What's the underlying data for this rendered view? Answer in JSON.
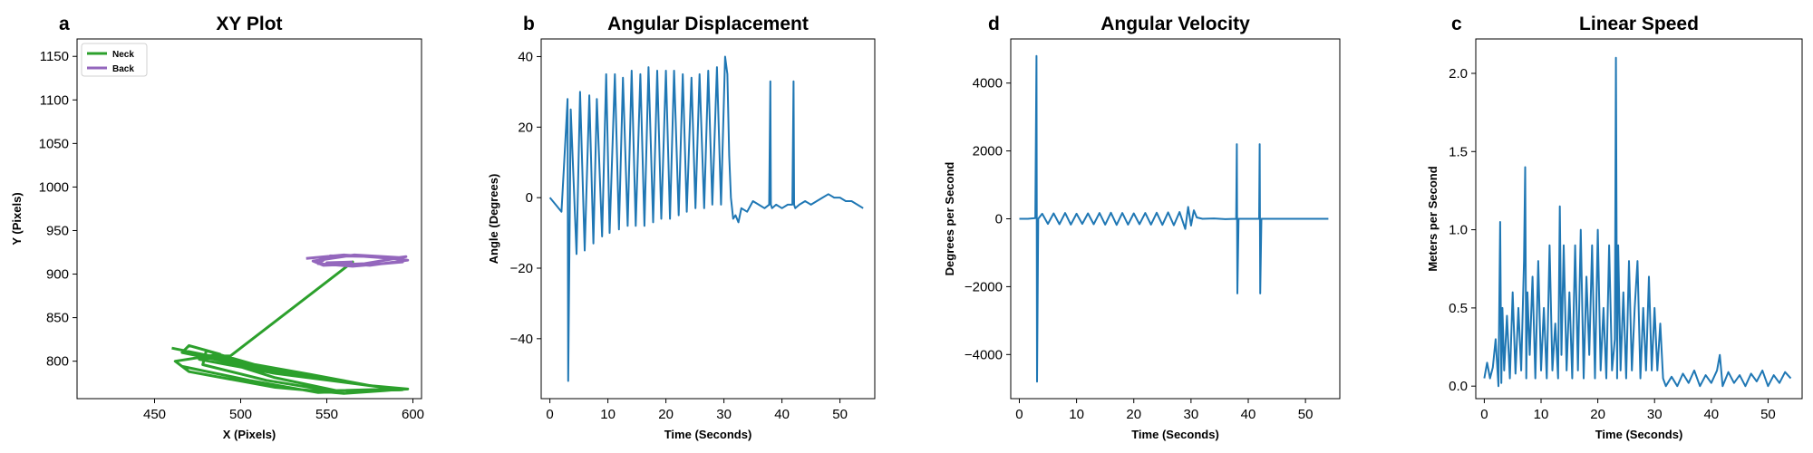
{
  "chart_data": [
    {
      "panel": "a",
      "type": "line",
      "title": "XY Plot",
      "xlabel": "X (Pixels)",
      "ylabel": "Y (Pixels)",
      "xlim": [
        405,
        605
      ],
      "ylim": [
        757,
        1170
      ],
      "xticks": [
        450,
        500,
        550,
        600
      ],
      "yticks": [
        800,
        850,
        900,
        950,
        1000,
        1050,
        1100,
        1150
      ],
      "legend": {
        "placement": "top-left",
        "entries": [
          "Neck",
          "Back"
        ]
      },
      "series": [
        {
          "name": "Neck",
          "color": "#2ca02c",
          "x": [
            460,
            500,
            540,
            575,
            597,
            560,
            520,
            470,
            462,
            488,
            470,
            466,
            500,
            545,
            590,
            552,
            515,
            478,
            480,
            510,
            560,
            594,
            556,
            520,
            480,
            494,
            565,
            494,
            476,
            520,
            575,
            596,
            545,
            505,
            466
          ],
          "y": [
            815,
            799,
            785,
            772,
            768,
            763,
            770,
            788,
            800,
            808,
            818,
            810,
            796,
            780,
            768,
            766,
            778,
            796,
            812,
            795,
            776,
            767,
            766,
            781,
            806,
            806,
            914,
            806,
            802,
            786,
            772,
            768,
            764,
            778,
            794
          ]
        },
        {
          "name": "Back",
          "color": "#9467bd",
          "x": [
            538,
            560,
            588,
            596,
            572,
            548,
            542,
            566,
            592,
            594,
            565,
            545,
            552,
            580,
            597,
            575,
            550,
            565
          ],
          "y": [
            918,
            922,
            918,
            920,
            912,
            910,
            915,
            922,
            919,
            914,
            909,
            912,
            921,
            920,
            916,
            910,
            913,
            914
          ]
        }
      ]
    },
    {
      "panel": "b",
      "type": "line",
      "title": "Angular Displacement",
      "xlabel": "Time (Seconds)",
      "ylabel": "Angle (Degrees)",
      "xlim": [
        -1.5,
        56
      ],
      "ylim": [
        -57,
        45
      ],
      "xticks": [
        0,
        10,
        20,
        30,
        40,
        50
      ],
      "yticks": [
        -40,
        -20,
        0,
        20,
        40
      ],
      "series": [
        {
          "color": "#1f77b4",
          "x": [
            0,
            1,
            2,
            2.8,
            3.05,
            3.15,
            3.6,
            4.6,
            5.2,
            6.0,
            6.8,
            7.5,
            8.1,
            9.0,
            9.7,
            10.3,
            11.2,
            11.9,
            12.6,
            13.4,
            14.1,
            14.8,
            15.6,
            16.3,
            17.0,
            17.8,
            18.5,
            19.2,
            20.0,
            20.7,
            21.4,
            22.2,
            22.9,
            23.6,
            24.4,
            25.1,
            25.8,
            26.6,
            27.3,
            28.0,
            28.8,
            29.5,
            30.2,
            30.6,
            30.9,
            31.2,
            31.6,
            32.0,
            32.5,
            33.0,
            34.0,
            35.0,
            36.0,
            37.0,
            37.8,
            38.0,
            38.1,
            38.3,
            39.0,
            40.0,
            41.0,
            41.8,
            42.0,
            42.1,
            42.3,
            43.0,
            44.0,
            45.0,
            46.0,
            47.0,
            48.0,
            49.0,
            50.0,
            51.0,
            52.0,
            53.0,
            54.0
          ],
          "y": [
            0,
            -2,
            -4,
            20,
            28,
            -52,
            25,
            -16,
            30,
            -15,
            29,
            -13,
            28,
            -11,
            35,
            -10,
            35,
            -9,
            34,
            -8,
            36,
            -8,
            35,
            -8,
            37,
            -7,
            36,
            -6,
            36,
            -6,
            36,
            -5,
            35,
            -4,
            34,
            -3,
            35,
            -3,
            36,
            -2,
            37,
            -2,
            40,
            35,
            12,
            0,
            -6,
            -5,
            -7,
            -3,
            -4,
            -1,
            -2,
            -3,
            -2,
            33,
            -2,
            -3,
            -2,
            -3,
            -2,
            -2,
            33,
            -2,
            -3,
            -2,
            -1,
            -2,
            -1,
            0,
            1,
            0,
            0,
            -1,
            -1,
            -2,
            -3
          ]
        }
      ]
    },
    {
      "panel": "d",
      "type": "line",
      "title": "Angular Velocity",
      "xlabel": "Time (Seconds)",
      "ylabel": "Degrees per Second",
      "xlim": [
        -1.5,
        56
      ],
      "ylim": [
        -5300,
        5300
      ],
      "xticks": [
        0,
        10,
        20,
        30,
        40,
        50
      ],
      "yticks": [
        -4000,
        -2000,
        0,
        2000,
        4000
      ],
      "series": [
        {
          "color": "#1f77b4",
          "x": [
            0,
            1.5,
            2.8,
            3.0,
            3.1,
            3.3,
            4.0,
            5.0,
            6.0,
            7.0,
            8.0,
            9.0,
            10.0,
            11.0,
            12.0,
            13.0,
            14.0,
            15.0,
            16.0,
            17.0,
            18.0,
            19.0,
            20.0,
            21.0,
            22.0,
            23.0,
            24.0,
            25.0,
            26.0,
            27.0,
            28.0,
            29.0,
            29.5,
            30.0,
            30.5,
            31.0,
            32.0,
            34.0,
            36.0,
            37.9,
            38.0,
            38.1,
            38.3,
            40.0,
            41.9,
            42.0,
            42.1,
            42.3,
            45.0,
            48.0,
            51.0,
            54.0
          ],
          "y": [
            0,
            0,
            20,
            4800,
            -4800,
            0,
            150,
            -150,
            160,
            -160,
            170,
            -170,
            150,
            -150,
            160,
            -160,
            170,
            -170,
            180,
            -180,
            170,
            -170,
            160,
            -160,
            170,
            -170,
            180,
            -180,
            190,
            -190,
            200,
            -300,
            350,
            -200,
            250,
            40,
            0,
            10,
            -10,
            0,
            2200,
            -2200,
            0,
            0,
            0,
            2200,
            -2200,
            0,
            0,
            0,
            0,
            0
          ]
        }
      ]
    },
    {
      "panel": "c",
      "type": "line",
      "title": "Linear Speed",
      "xlabel": "Time (Seconds)",
      "ylabel": "Meters per Second",
      "xlim": [
        -1.5,
        56
      ],
      "ylim": [
        -0.08,
        2.22
      ],
      "xticks": [
        0,
        10,
        20,
        30,
        40,
        50
      ],
      "yticks": [
        0.0,
        0.5,
        1.0,
        1.5,
        2.0
      ],
      "series": [
        {
          "color": "#1f77b4",
          "x": [
            0,
            0.5,
            1.0,
            1.5,
            2.0,
            2.5,
            2.8,
            3.0,
            3.2,
            3.5,
            4.0,
            4.5,
            5.0,
            5.5,
            6.0,
            6.5,
            7.0,
            7.2,
            7.4,
            7.6,
            8.0,
            8.5,
            9.0,
            9.5,
            10.0,
            10.5,
            11.0,
            11.5,
            12.0,
            12.5,
            13.0,
            13.3,
            13.6,
            14.0,
            14.5,
            15.0,
            15.5,
            16.0,
            16.5,
            17.0,
            17.5,
            18.0,
            18.5,
            19.0,
            19.5,
            20.0,
            20.5,
            21.0,
            21.5,
            22.0,
            22.5,
            23.0,
            23.2,
            23.4,
            23.6,
            24.0,
            24.5,
            25.0,
            25.5,
            26.0,
            26.5,
            27.0,
            27.5,
            28.0,
            28.5,
            29.0,
            29.5,
            30.0,
            30.5,
            31.0,
            31.5,
            32.0,
            33.0,
            34.0,
            35.0,
            36.0,
            37.0,
            38.0,
            39.0,
            40.0,
            41.0,
            41.5,
            42.0,
            43.0,
            44.0,
            45.0,
            46.0,
            47.0,
            48.0,
            49.0,
            50.0,
            51.0,
            52.0,
            53.0,
            54.0
          ],
          "y": [
            0.05,
            0.15,
            0.05,
            0.12,
            0.3,
            0.0,
            1.05,
            0.02,
            0.5,
            0.1,
            0.45,
            0.05,
            0.6,
            0.08,
            0.5,
            0.1,
            0.8,
            1.4,
            0.05,
            0.6,
            0.2,
            0.7,
            0.05,
            0.8,
            0.1,
            0.5,
            0.05,
            0.9,
            0.1,
            0.4,
            0.05,
            1.15,
            0.2,
            0.9,
            0.1,
            0.6,
            0.05,
            0.9,
            0.1,
            1.0,
            0.05,
            0.7,
            0.2,
            0.9,
            0.05,
            1.0,
            0.1,
            0.5,
            0.05,
            0.9,
            0.1,
            0.3,
            2.1,
            0.05,
            0.9,
            0.1,
            0.6,
            0.05,
            0.8,
            0.1,
            0.5,
            0.8,
            0.05,
            0.5,
            0.1,
            0.7,
            0.1,
            0.5,
            0.1,
            0.4,
            0.05,
            0.0,
            0.06,
            0.0,
            0.08,
            0.02,
            0.1,
            0.0,
            0.07,
            0.02,
            0.1,
            0.2,
            0.0,
            0.09,
            0.02,
            0.07,
            0.0,
            0.08,
            0.03,
            0.1,
            0.0,
            0.07,
            0.02,
            0.09,
            0.05
          ]
        }
      ]
    }
  ]
}
